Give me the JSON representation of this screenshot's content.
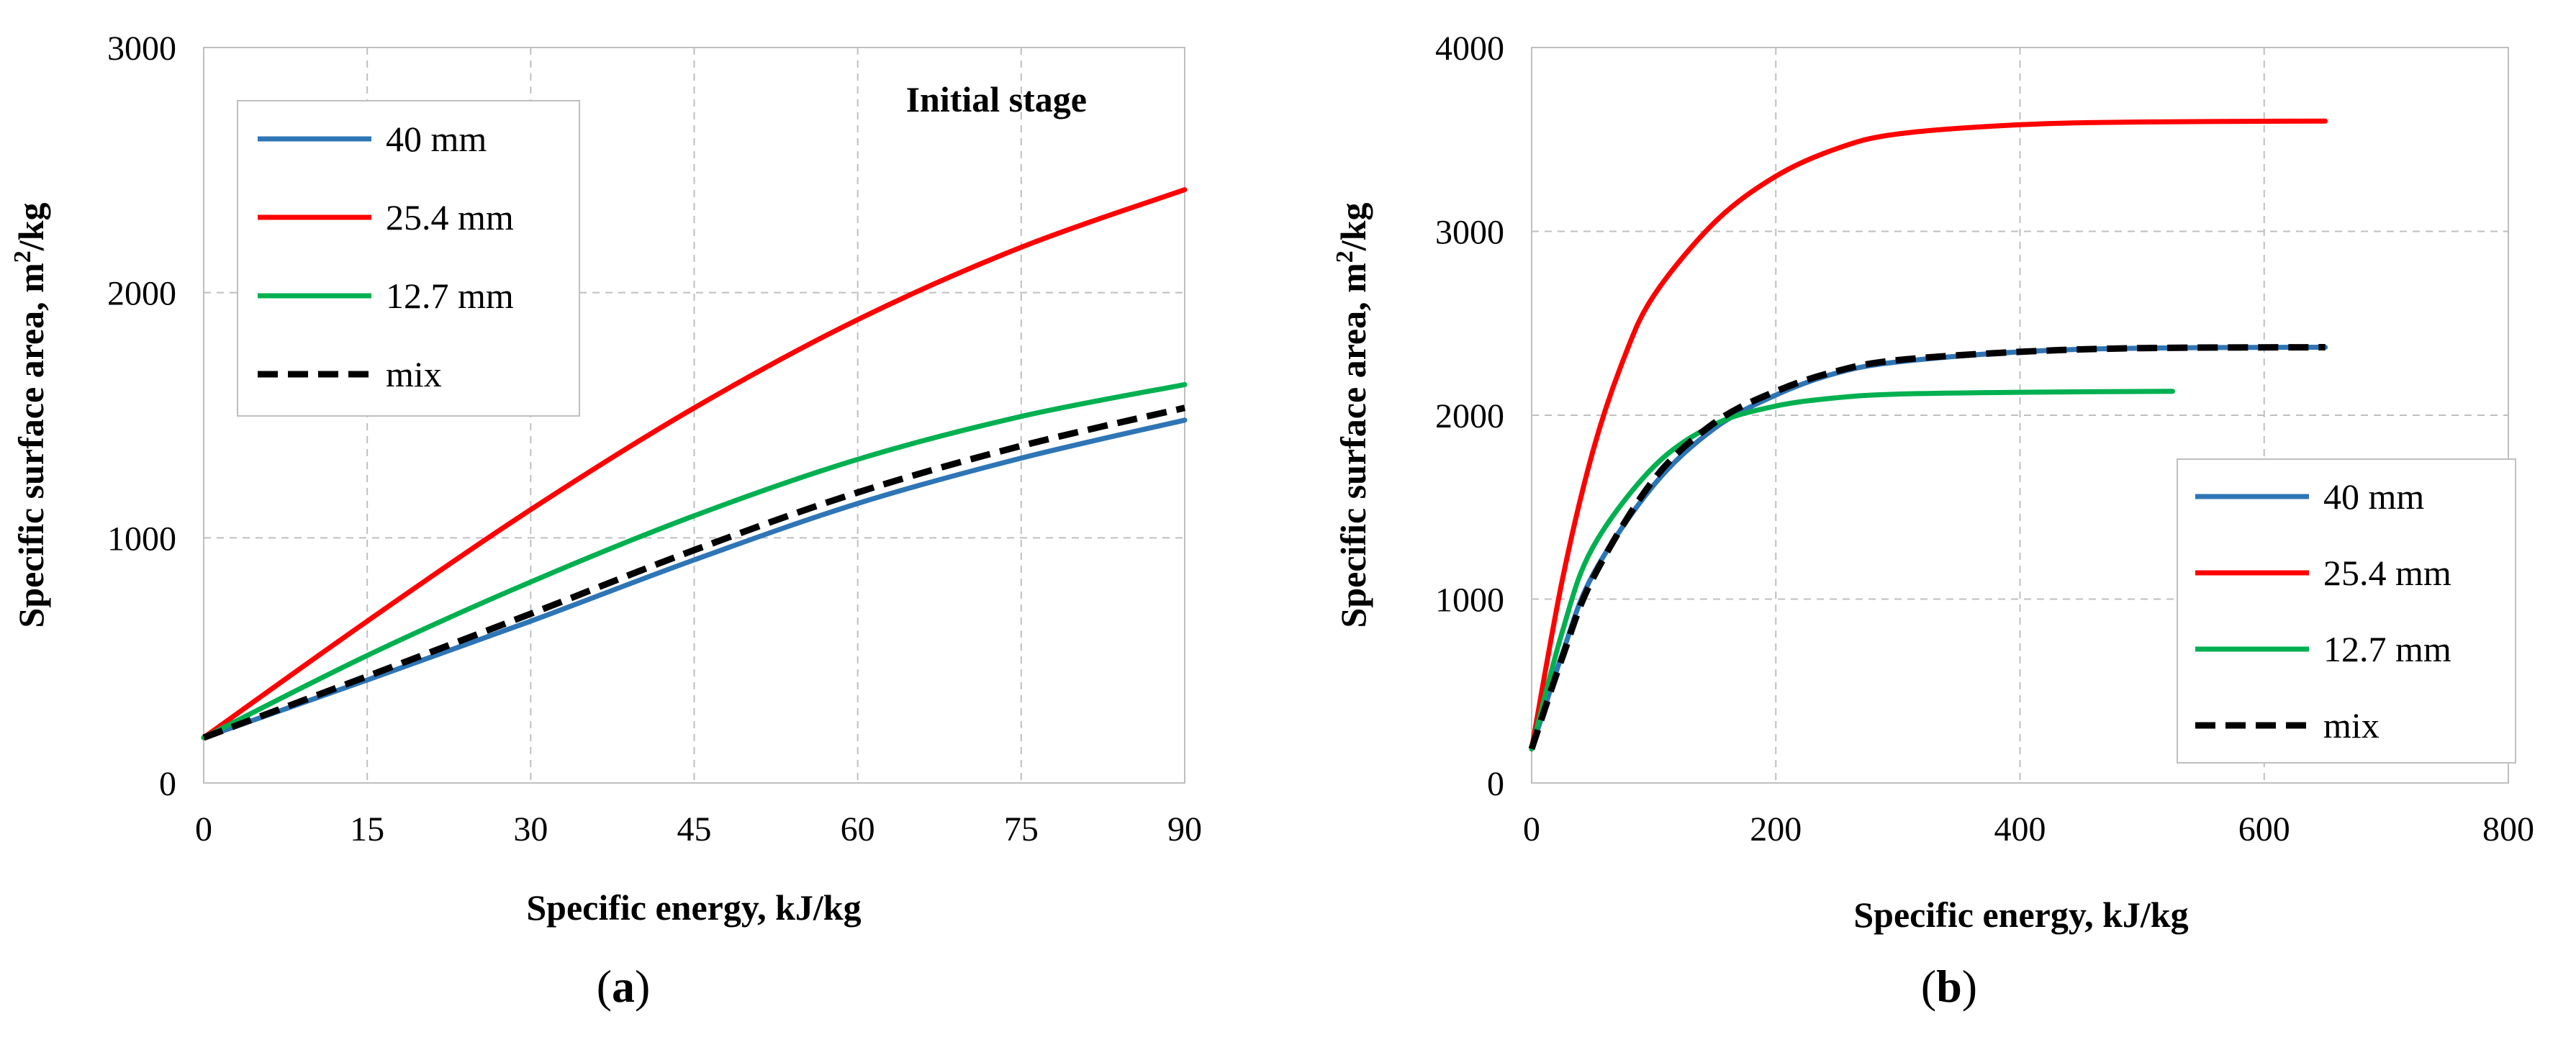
{
  "chart_data": [
    {
      "type": "line",
      "panel_label": "a",
      "annotation": "Initial stage",
      "xlabel": "Specific energy, kJ/kg",
      "ylabel_parts": [
        "Specific surface area, m",
        "2",
        "/kg"
      ],
      "xlim": [
        0,
        90
      ],
      "ylim": [
        0,
        3000
      ],
      "xticks": [
        0,
        15,
        30,
        45,
        60,
        75,
        90
      ],
      "yticks": [
        0,
        1000,
        2000,
        3000
      ],
      "xtick_labels": [
        "0",
        "15",
        "30",
        "45",
        "60",
        "75",
        "90"
      ],
      "ytick_labels": [
        "0",
        "1000",
        "2000",
        "3000"
      ],
      "grid": true,
      "legend_position": "top-left",
      "series": [
        {
          "name": "40 mm",
          "color": "#2e75b6",
          "dashed": false,
          "x": [
            0,
            15,
            30,
            45,
            60,
            75,
            90
          ],
          "y": [
            185,
            420,
            660,
            910,
            1140,
            1325,
            1480
          ]
        },
        {
          "name": "25.4 mm",
          "color": "#ff0000",
          "dashed": false,
          "x": [
            0,
            15,
            30,
            45,
            60,
            75,
            90
          ],
          "y": [
            185,
            660,
            1115,
            1530,
            1890,
            2185,
            2420
          ]
        },
        {
          "name": "12.7 mm",
          "color": "#00b050",
          "dashed": false,
          "x": [
            0,
            15,
            30,
            45,
            60,
            75,
            90
          ],
          "y": [
            185,
            520,
            820,
            1090,
            1320,
            1495,
            1625
          ]
        },
        {
          "name": "mix",
          "color": "#000000",
          "dashed": true,
          "x": [
            0,
            15,
            30,
            45,
            60,
            75,
            90
          ],
          "y": [
            185,
            435,
            690,
            950,
            1185,
            1375,
            1530
          ]
        }
      ]
    },
    {
      "type": "line",
      "panel_label": "b",
      "xlabel": "Specific energy, kJ/kg",
      "ylabel_parts": [
        "Specific surface area, m",
        "2",
        "/kg"
      ],
      "xlim": [
        0,
        800
      ],
      "ylim": [
        0,
        4000
      ],
      "xticks": [
        0,
        200,
        400,
        600,
        800
      ],
      "yticks": [
        0,
        1000,
        2000,
        3000,
        4000
      ],
      "xtick_labels": [
        "0",
        "200",
        "400",
        "600",
        "800"
      ],
      "ytick_labels": [
        "0",
        "1000",
        "2000",
        "3000",
        "4000"
      ],
      "grid": true,
      "legend_position": "bottom-right",
      "series": [
        {
          "name": "40 mm",
          "color": "#2e75b6",
          "dashed": false,
          "x": [
            0,
            25,
            50,
            100,
            150,
            200,
            250,
            300,
            400,
            500,
            650
          ],
          "y": [
            185,
            700,
            1130,
            1620,
            1930,
            2110,
            2230,
            2290,
            2345,
            2365,
            2370
          ]
        },
        {
          "name": "25.4 mm",
          "color": "#ff0000",
          "dashed": false,
          "x": [
            0,
            25,
            50,
            75,
            100,
            150,
            200,
            250,
            300,
            400,
            500,
            650
          ],
          "y": [
            185,
            1100,
            1800,
            2300,
            2650,
            3050,
            3300,
            3450,
            3530,
            3580,
            3595,
            3600
          ]
        },
        {
          "name": "12.7 mm",
          "color": "#00b050",
          "dashed": false,
          "x": [
            0,
            25,
            50,
            100,
            150,
            200,
            250,
            300,
            400,
            525
          ],
          "y": [
            185,
            820,
            1280,
            1720,
            1950,
            2050,
            2095,
            2115,
            2125,
            2130
          ]
        },
        {
          "name": "mix",
          "color": "#000000",
          "dashed": true,
          "x": [
            0,
            25,
            50,
            100,
            150,
            200,
            250,
            300,
            400,
            500,
            650
          ],
          "y": [
            185,
            680,
            1110,
            1650,
            1960,
            2130,
            2240,
            2300,
            2345,
            2365,
            2370
          ]
        }
      ]
    }
  ]
}
